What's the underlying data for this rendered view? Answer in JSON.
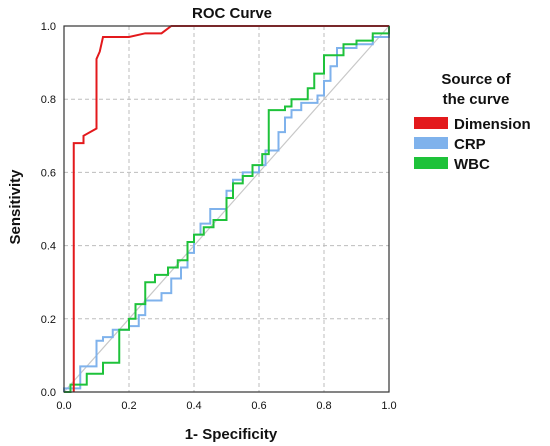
{
  "chart_data": {
    "type": "line",
    "title": "ROC Curve",
    "xlabel": "1- Specificity",
    "ylabel": "Sensitivity",
    "xlim": [
      0,
      1
    ],
    "ylim": [
      0,
      1
    ],
    "xticks": [
      "0.0",
      "0.2",
      "0.4",
      "0.6",
      "0.8",
      "1.0"
    ],
    "yticks": [
      "0.0",
      "0.2",
      "0.4",
      "0.6",
      "0.8",
      "1.0"
    ],
    "grid": true,
    "legend": {
      "title": "Source of the curve",
      "title_lines": [
        "Source of",
        "the curve"
      ],
      "position": "right"
    },
    "reference_line": {
      "from": [
        0,
        0
      ],
      "to": [
        1,
        1
      ],
      "color": "#c8c8c8"
    },
    "series": [
      {
        "name": "Dimension",
        "color": "#e3191c",
        "points": [
          [
            0.03,
            0
          ],
          [
            0.03,
            0.68
          ],
          [
            0.06,
            0.68
          ],
          [
            0.06,
            0.7
          ],
          [
            0.1,
            0.72
          ],
          [
            0.1,
            0.91
          ],
          [
            0.11,
            0.93
          ],
          [
            0.12,
            0.97
          ],
          [
            0.2,
            0.97
          ],
          [
            0.25,
            0.98
          ],
          [
            0.3,
            0.98
          ],
          [
            0.33,
            1.0
          ],
          [
            1.0,
            1.0
          ]
        ]
      },
      {
        "name": "CRP",
        "color": "#7fb2ec",
        "points": [
          [
            0,
            0
          ],
          [
            0,
            0.01
          ],
          [
            0.05,
            0.01
          ],
          [
            0.05,
            0.07
          ],
          [
            0.1,
            0.07
          ],
          [
            0.1,
            0.14
          ],
          [
            0.12,
            0.14
          ],
          [
            0.12,
            0.15
          ],
          [
            0.15,
            0.15
          ],
          [
            0.15,
            0.17
          ],
          [
            0.2,
            0.17
          ],
          [
            0.2,
            0.18
          ],
          [
            0.23,
            0.18
          ],
          [
            0.23,
            0.21
          ],
          [
            0.25,
            0.21
          ],
          [
            0.25,
            0.25
          ],
          [
            0.3,
            0.25
          ],
          [
            0.3,
            0.27
          ],
          [
            0.33,
            0.27
          ],
          [
            0.33,
            0.31
          ],
          [
            0.36,
            0.31
          ],
          [
            0.36,
            0.34
          ],
          [
            0.38,
            0.34
          ],
          [
            0.38,
            0.38
          ],
          [
            0.4,
            0.38
          ],
          [
            0.4,
            0.43
          ],
          [
            0.42,
            0.43
          ],
          [
            0.42,
            0.46
          ],
          [
            0.45,
            0.46
          ],
          [
            0.45,
            0.5
          ],
          [
            0.5,
            0.5
          ],
          [
            0.5,
            0.55
          ],
          [
            0.52,
            0.55
          ],
          [
            0.52,
            0.58
          ],
          [
            0.55,
            0.58
          ],
          [
            0.55,
            0.6
          ],
          [
            0.6,
            0.6
          ],
          [
            0.6,
            0.62
          ],
          [
            0.62,
            0.62
          ],
          [
            0.62,
            0.66
          ],
          [
            0.66,
            0.66
          ],
          [
            0.66,
            0.71
          ],
          [
            0.68,
            0.71
          ],
          [
            0.68,
            0.75
          ],
          [
            0.7,
            0.75
          ],
          [
            0.7,
            0.77
          ],
          [
            0.73,
            0.77
          ],
          [
            0.73,
            0.79
          ],
          [
            0.78,
            0.79
          ],
          [
            0.78,
            0.81
          ],
          [
            0.8,
            0.81
          ],
          [
            0.8,
            0.85
          ],
          [
            0.82,
            0.85
          ],
          [
            0.82,
            0.89
          ],
          [
            0.84,
            0.89
          ],
          [
            0.84,
            0.94
          ],
          [
            0.9,
            0.94
          ],
          [
            0.9,
            0.95
          ],
          [
            0.95,
            0.95
          ],
          [
            0.95,
            0.97
          ],
          [
            1.0,
            0.97
          ],
          [
            1.0,
            1.0
          ]
        ]
      },
      {
        "name": "WBC",
        "color": "#1ec23a",
        "points": [
          [
            0,
            0
          ],
          [
            0.02,
            0
          ],
          [
            0.02,
            0.02
          ],
          [
            0.07,
            0.02
          ],
          [
            0.07,
            0.05
          ],
          [
            0.12,
            0.05
          ],
          [
            0.12,
            0.08
          ],
          [
            0.17,
            0.08
          ],
          [
            0.17,
            0.17
          ],
          [
            0.2,
            0.17
          ],
          [
            0.2,
            0.2
          ],
          [
            0.22,
            0.2
          ],
          [
            0.22,
            0.24
          ],
          [
            0.25,
            0.24
          ],
          [
            0.25,
            0.3
          ],
          [
            0.28,
            0.3
          ],
          [
            0.28,
            0.32
          ],
          [
            0.32,
            0.32
          ],
          [
            0.32,
            0.34
          ],
          [
            0.35,
            0.34
          ],
          [
            0.35,
            0.36
          ],
          [
            0.38,
            0.36
          ],
          [
            0.38,
            0.41
          ],
          [
            0.4,
            0.41
          ],
          [
            0.4,
            0.43
          ],
          [
            0.43,
            0.43
          ],
          [
            0.43,
            0.45
          ],
          [
            0.46,
            0.45
          ],
          [
            0.46,
            0.47
          ],
          [
            0.5,
            0.47
          ],
          [
            0.5,
            0.53
          ],
          [
            0.52,
            0.53
          ],
          [
            0.52,
            0.57
          ],
          [
            0.55,
            0.57
          ],
          [
            0.55,
            0.59
          ],
          [
            0.58,
            0.59
          ],
          [
            0.58,
            0.62
          ],
          [
            0.61,
            0.62
          ],
          [
            0.61,
            0.65
          ],
          [
            0.63,
            0.65
          ],
          [
            0.63,
            0.77
          ],
          [
            0.68,
            0.77
          ],
          [
            0.68,
            0.78
          ],
          [
            0.7,
            0.78
          ],
          [
            0.7,
            0.8
          ],
          [
            0.75,
            0.8
          ],
          [
            0.75,
            0.83
          ],
          [
            0.77,
            0.83
          ],
          [
            0.77,
            0.87
          ],
          [
            0.8,
            0.87
          ],
          [
            0.8,
            0.92
          ],
          [
            0.86,
            0.92
          ],
          [
            0.86,
            0.95
          ],
          [
            0.9,
            0.95
          ],
          [
            0.9,
            0.96
          ],
          [
            0.95,
            0.96
          ],
          [
            0.95,
            0.98
          ],
          [
            1.0,
            0.98
          ],
          [
            1.0,
            1.0
          ]
        ]
      }
    ]
  }
}
